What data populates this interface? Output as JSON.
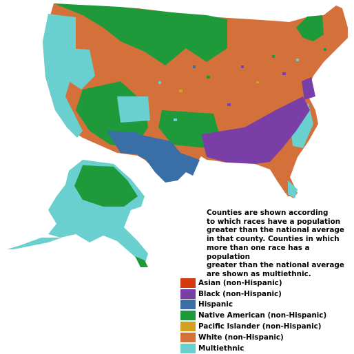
{
  "caption": "Counties are shown according\nto which races have a population\ngreater than the national average\nin that county.  Counties in which\nmore than one race has a population\ngreater than the national average\nare shown as multiethnic.",
  "legend": [
    {
      "label": "Asian (non-Hispanic)",
      "color": "#d43a10"
    },
    {
      "label": "Black (non-Hispanic)",
      "color": "#7a3fa6"
    },
    {
      "label": "Hispanic",
      "color": "#3a6ea6"
    },
    {
      "label": "Native American (non-Hispanic)",
      "color": "#1e9a3a"
    },
    {
      "label": "Pacific Islander (non-Hispanic)",
      "color": "#d4a020"
    },
    {
      "label": "White (non-Hispanic)",
      "color": "#d4703a"
    },
    {
      "label": "Multiethnic",
      "color": "#6acfcf"
    }
  ]
}
